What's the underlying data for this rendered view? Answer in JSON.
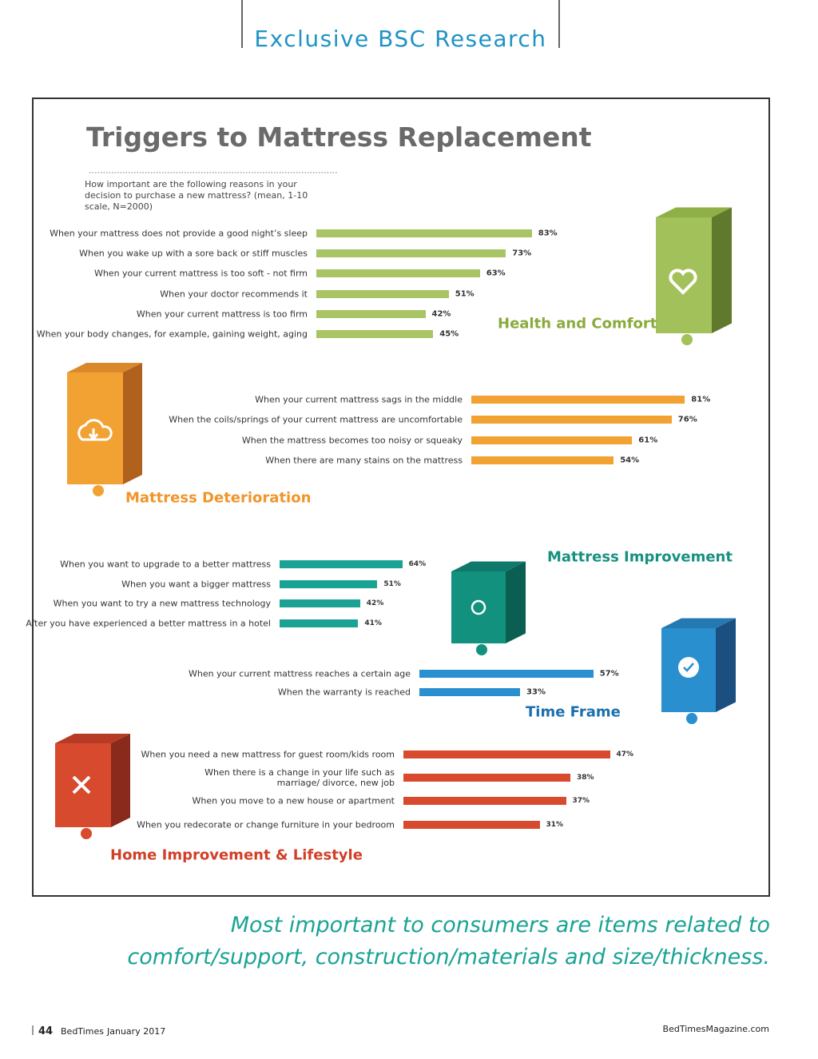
{
  "header": {
    "section": "Exclusive BSC Research",
    "title": "Triggers to Mattress Replacement",
    "subtitle": "How important are the following reasons in your decision to purchase a new mattress? (mean, 1-10 scale, N=2000)"
  },
  "chart_data": [
    {
      "type": "bar",
      "orientation": "horizontal",
      "title": "Health and Comfort",
      "color": "#a8c464",
      "title_color": "#8aab3c",
      "categories": [
        "When your mattress does not provide a good night’s sleep",
        "When you wake up with a sore back or stiff muscles",
        "When your current mattress is too soft - not firm",
        "When your doctor recommends it",
        "When your current mattress is too firm",
        "When your body changes, for example, gaining weight, aging"
      ],
      "values": [
        83,
        73,
        63,
        51,
        42,
        45
      ],
      "value_labels": [
        "83%",
        "73%",
        "63%",
        "51%",
        "42%",
        "45%"
      ]
    },
    {
      "type": "bar",
      "orientation": "horizontal",
      "title": "Mattress Deterioration",
      "color": "#f2a232",
      "title_color": "#f0952a",
      "categories": [
        "When your current mattress sags in the middle",
        "When the coils/springs of your current mattress are uncomfortable",
        "When the mattress becomes too noisy or squeaky",
        "When there are many stains on the mattress"
      ],
      "values": [
        81,
        76,
        61,
        54
      ],
      "value_labels": [
        "81%",
        "76%",
        "61%",
        "54%"
      ]
    },
    {
      "type": "bar",
      "orientation": "horizontal",
      "title": "Mattress Improvement",
      "color": "#1aa394",
      "title_color": "#17917f",
      "categories": [
        "When you want to upgrade to a better mattress",
        "When you want a bigger mattress",
        "When you want to try a new mattress technology",
        "After you have experienced a better mattress in a hotel"
      ],
      "values": [
        64,
        51,
        42,
        41
      ],
      "value_labels": [
        "64%",
        "51%",
        "42%",
        "41%"
      ]
    },
    {
      "type": "bar",
      "orientation": "horizontal",
      "title": "Time Frame",
      "color": "#2a8fcf",
      "title_color": "#1b6fae",
      "categories": [
        "When your current mattress reaches a certain age",
        "When the warranty is reached"
      ],
      "values": [
        57,
        33
      ],
      "value_labels": [
        "57%",
        "33%"
      ]
    },
    {
      "type": "bar",
      "orientation": "horizontal",
      "title": "Home Improvement & Lifestyle",
      "color": "#d84a2e",
      "title_color": "#d13f27",
      "categories": [
        "When you need a new mattress for guest room/kids room",
        "When there is a change in your life such as marriage/ divorce, new job",
        "When you move to a new house or apartment",
        "When you redecorate or change furniture in your bedroom"
      ],
      "values": [
        47,
        38,
        37,
        31
      ],
      "value_labels": [
        "47%",
        "38%",
        "37%",
        "31%"
      ]
    }
  ],
  "quote": "Most important to consumers are items related to comfort/support, construction/materials and size/thickness.",
  "footer": {
    "page": "44",
    "magazine": "BedTimes",
    "date": "January 2017",
    "website": "BedTimesMagazine.com"
  }
}
